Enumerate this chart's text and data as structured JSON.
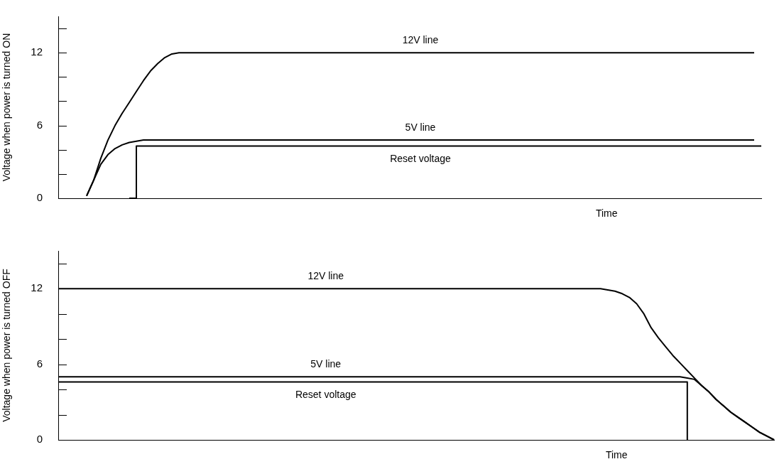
{
  "chart_data": [
    {
      "type": "line",
      "ylabel": "Voltage when power is turned ON",
      "xlabel": "Time",
      "categories": [
        null,
        null,
        null,
        null,
        null,
        null,
        null,
        null,
        null,
        null,
        null,
        null,
        null,
        null,
        null,
        null,
        null,
        null,
        null,
        null,
        null,
        null,
        null,
        null,
        null,
        null,
        null,
        null,
        null,
        null,
        null,
        null,
        null,
        null,
        null,
        null,
        null,
        null,
        null,
        null,
        null,
        null,
        null,
        null,
        null,
        null,
        null,
        null,
        null,
        null,
        null,
        null,
        null,
        null,
        null,
        null,
        null,
        null,
        null,
        null,
        null,
        null,
        null,
        null,
        null,
        null,
        null,
        null,
        null,
        null,
        null,
        null,
        null,
        null,
        null,
        null,
        null,
        null,
        null,
        null,
        null,
        null,
        null,
        null,
        null,
        null,
        null,
        null,
        null,
        null,
        null,
        null,
        null,
        null,
        null,
        null,
        null,
        null,
        null,
        null
      ],
      "ylim": [
        0,
        15
      ],
      "yticks": [
        0,
        {
          "value": 2,
          "label": null
        },
        {
          "value": 4,
          "label": null
        },
        6,
        {
          "value": 8,
          "label": null
        },
        {
          "value": 10,
          "label": null
        },
        12,
        {
          "value": 14,
          "label": null
        }
      ],
      "tick_labels": "y",
      "marker": "none",
      "series": [
        {
          "name": "12V line",
          "color": "#000000",
          "values": [
            null,
            null,
            null,
            null,
            0.2,
            1.5,
            3.3,
            4.8,
            6.0,
            7.0,
            7.9,
            8.8,
            9.7,
            10.5,
            11.1,
            11.6,
            11.9,
            12,
            12,
            12,
            12,
            12,
            12,
            12,
            12,
            12,
            12,
            12,
            12,
            12,
            12,
            12,
            12,
            12,
            12,
            12,
            12,
            12,
            12,
            12,
            12,
            12,
            12,
            12,
            12,
            12,
            12,
            12,
            12,
            12,
            12,
            12,
            12,
            12,
            12,
            12,
            12,
            12,
            12,
            12,
            12,
            12,
            12,
            12,
            12,
            12,
            12,
            12,
            12,
            12,
            12,
            12,
            12,
            12,
            12,
            12,
            12,
            12,
            12,
            12,
            12,
            12,
            12,
            12,
            12,
            12,
            12,
            12,
            12,
            12,
            12,
            12,
            12,
            12,
            12,
            12,
            12,
            12,
            12,
            null
          ]
        },
        {
          "name": "5V line",
          "color": "#000000",
          "values": [
            null,
            null,
            null,
            null,
            0.2,
            1.5,
            2.8,
            3.6,
            4.1,
            4.4,
            4.6,
            4.7,
            4.8,
            4.8,
            4.8,
            4.8,
            4.8,
            4.8,
            4.8,
            4.8,
            4.8,
            4.8,
            4.8,
            4.8,
            4.8,
            4.8,
            4.8,
            4.8,
            4.8,
            4.8,
            4.8,
            4.8,
            4.8,
            4.8,
            4.8,
            4.8,
            4.8,
            4.8,
            4.8,
            4.8,
            4.8,
            4.8,
            4.8,
            4.8,
            4.8,
            4.8,
            4.8,
            4.8,
            4.8,
            4.8,
            4.8,
            4.8,
            4.8,
            4.8,
            4.8,
            4.8,
            4.8,
            4.8,
            4.8,
            4.8,
            4.8,
            4.8,
            4.8,
            4.8,
            4.8,
            4.8,
            4.8,
            4.8,
            4.8,
            4.8,
            4.8,
            4.8,
            4.8,
            4.8,
            4.8,
            4.8,
            4.8,
            4.8,
            4.8,
            4.8,
            4.8,
            4.8,
            4.8,
            4.8,
            4.8,
            4.8,
            4.8,
            4.8,
            4.8,
            4.8,
            4.8,
            4.8,
            4.8,
            4.8,
            4.8,
            4.8,
            4.8,
            4.8,
            4.8,
            null
          ]
        },
        {
          "name": "Reset voltage",
          "type": "step",
          "color": "#000000",
          "values": [
            null,
            null,
            null,
            null,
            null,
            null,
            null,
            null,
            null,
            null,
            0,
            4.3,
            4.3,
            4.3,
            4.3,
            4.3,
            4.3,
            4.3,
            4.3,
            4.3,
            4.3,
            4.3,
            4.3,
            4.3,
            4.3,
            4.3,
            4.3,
            4.3,
            4.3,
            4.3,
            4.3,
            4.3,
            4.3,
            4.3,
            4.3,
            4.3,
            4.3,
            4.3,
            4.3,
            4.3,
            4.3,
            4.3,
            4.3,
            4.3,
            4.3,
            4.3,
            4.3,
            4.3,
            4.3,
            4.3,
            4.3,
            4.3,
            4.3,
            4.3,
            4.3,
            4.3,
            4.3,
            4.3,
            4.3,
            4.3,
            4.3,
            4.3,
            4.3,
            4.3,
            4.3,
            4.3,
            4.3,
            4.3,
            4.3,
            4.3,
            4.3,
            4.3,
            4.3,
            4.3,
            4.3,
            4.3,
            4.3,
            4.3,
            4.3,
            4.3,
            4.3,
            4.3,
            4.3,
            4.3,
            4.3,
            4.3,
            4.3,
            4.3,
            4.3,
            4.3,
            4.3,
            4.3,
            4.3,
            4.3,
            4.3,
            4.3,
            4.3,
            4.3,
            4.3,
            4.3
          ]
        }
      ]
    },
    {
      "type": "line",
      "ylabel": "Voltage when power is turned OFF",
      "xlabel": "Time",
      "categories": [
        null,
        null,
        null,
        null,
        null,
        null,
        null,
        null,
        null,
        null,
        null,
        null,
        null,
        null,
        null,
        null,
        null,
        null,
        null,
        null,
        null,
        null,
        null,
        null,
        null,
        null,
        null,
        null,
        null,
        null,
        null,
        null,
        null,
        null,
        null,
        null,
        null,
        null,
        null,
        null,
        null,
        null,
        null,
        null,
        null,
        null,
        null,
        null,
        null,
        null,
        null,
        null,
        null,
        null,
        null,
        null,
        null,
        null,
        null,
        null,
        null,
        null,
        null,
        null,
        null,
        null,
        null,
        null,
        null,
        null,
        null,
        null,
        null,
        null,
        null,
        null,
        null,
        null,
        null,
        null,
        null,
        null,
        null,
        null,
        null,
        null,
        null,
        null,
        null,
        null,
        null,
        null,
        null,
        null,
        null,
        null,
        null,
        null,
        null,
        null
      ],
      "ylim": [
        0,
        15
      ],
      "yticks": [
        0,
        {
          "value": 2,
          "label": null
        },
        {
          "value": 4,
          "label": null
        },
        6,
        {
          "value": 8,
          "label": null
        },
        {
          "value": 10,
          "label": null
        },
        12,
        {
          "value": 14,
          "label": null
        }
      ],
      "tick_labels": "y",
      "marker": "none",
      "series": [
        {
          "name": "12V line",
          "color": "#000000",
          "values": [
            12,
            12,
            12,
            12,
            12,
            12,
            12,
            12,
            12,
            12,
            12,
            12,
            12,
            12,
            12,
            12,
            12,
            12,
            12,
            12,
            12,
            12,
            12,
            12,
            12,
            12,
            12,
            12,
            12,
            12,
            12,
            12,
            12,
            12,
            12,
            12,
            12,
            12,
            12,
            12,
            12,
            12,
            12,
            12,
            12,
            12,
            12,
            12,
            12,
            12,
            12,
            12,
            12,
            12,
            12,
            12,
            12,
            12,
            12,
            12,
            12,
            12,
            12,
            12,
            12,
            12,
            12,
            12,
            12,
            12,
            12,
            12,
            12,
            12,
            12,
            12,
            11.9,
            11.8,
            11.6,
            11.3,
            10.8,
            10.0,
            8.9,
            8.1,
            7.4,
            6.7,
            6.1,
            5.5,
            4.9,
            4.3,
            3.8,
            3.2,
            2.7,
            2.2,
            1.8,
            1.4,
            1.0,
            0.6,
            0.3,
            0
          ]
        },
        {
          "name": "5V line",
          "color": "#000000",
          "values": [
            5.0,
            5.0,
            5.0,
            5.0,
            5.0,
            5.0,
            5.0,
            5.0,
            5.0,
            5.0,
            5.0,
            5.0,
            5.0,
            5.0,
            5.0,
            5.0,
            5.0,
            5.0,
            5.0,
            5.0,
            5.0,
            5.0,
            5.0,
            5.0,
            5.0,
            5.0,
            5.0,
            5.0,
            5.0,
            5.0,
            5.0,
            5.0,
            5.0,
            5.0,
            5.0,
            5.0,
            5.0,
            5.0,
            5.0,
            5.0,
            5.0,
            5.0,
            5.0,
            5.0,
            5.0,
            5.0,
            5.0,
            5.0,
            5.0,
            5.0,
            5.0,
            5.0,
            5.0,
            5.0,
            5.0,
            5.0,
            5.0,
            5.0,
            5.0,
            5.0,
            5.0,
            5.0,
            5.0,
            5.0,
            5.0,
            5.0,
            5.0,
            5.0,
            5.0,
            5.0,
            5.0,
            5.0,
            5.0,
            5.0,
            5.0,
            5.0,
            5.0,
            5.0,
            5.0,
            5.0,
            5.0,
            5.0,
            5.0,
            5.0,
            5.0,
            5.0,
            5.0,
            4.9,
            4.8,
            4.3,
            3.8,
            3.2,
            2.7,
            2.2,
            1.8,
            1.4,
            1.0,
            0.6,
            0.3,
            0
          ]
        },
        {
          "name": "Reset voltage",
          "type": "step",
          "color": "#000000",
          "values": [
            4.6,
            4.6,
            4.6,
            4.6,
            4.6,
            4.6,
            4.6,
            4.6,
            4.6,
            4.6,
            4.6,
            4.6,
            4.6,
            4.6,
            4.6,
            4.6,
            4.6,
            4.6,
            4.6,
            4.6,
            4.6,
            4.6,
            4.6,
            4.6,
            4.6,
            4.6,
            4.6,
            4.6,
            4.6,
            4.6,
            4.6,
            4.6,
            4.6,
            4.6,
            4.6,
            4.6,
            4.6,
            4.6,
            4.6,
            4.6,
            4.6,
            4.6,
            4.6,
            4.6,
            4.6,
            4.6,
            4.6,
            4.6,
            4.6,
            4.6,
            4.6,
            4.6,
            4.6,
            4.6,
            4.6,
            4.6,
            4.6,
            4.6,
            4.6,
            4.6,
            4.6,
            4.6,
            4.6,
            4.6,
            4.6,
            4.6,
            4.6,
            4.6,
            4.6,
            4.6,
            4.6,
            4.6,
            4.6,
            4.6,
            4.6,
            4.6,
            4.6,
            4.6,
            4.6,
            4.6,
            4.6,
            4.6,
            4.6,
            4.6,
            4.6,
            4.6,
            4.6,
            0,
            null,
            null,
            null,
            null,
            null,
            null,
            null,
            null,
            null,
            null,
            null,
            null
          ]
        }
      ]
    }
  ]
}
